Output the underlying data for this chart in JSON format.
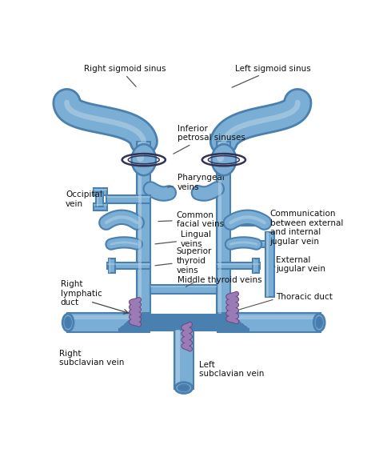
{
  "bg_color": "#ffffff",
  "vc": "#7baed4",
  "ve": "#4a80b0",
  "vl": "#b8d4e8",
  "vd": "#5588bb",
  "lc": "#9b7bb5",
  "tc": "#111111",
  "labels": {
    "right_sigmoid": "Right sigmoid sinus",
    "left_sigmoid": "Left sigmoid sinus",
    "inferior_petrosal": "Inferior\npetrosaI sinuses",
    "pharyngeal": "Pharyngeal\nveins",
    "occipital": "Occipital\nvein",
    "common_facial": "Common\nfacial veins",
    "lingual": "Lingual\nveins",
    "superior_thyroid": "Superior\nthyroid\nveins",
    "middle_thyroid": "Middle thyroid veins",
    "right_lymphatic": "Right\nlymphatic\nduct",
    "thoracic_duct": "Thoracic duct",
    "right_subclavian": "Right\nsubclavian vein",
    "left_subclavian": "Left\nsubclavian vein",
    "communication": "Communication\nbetween external\nand internal\njugular vein",
    "external_jugular": "External\njugular vein"
  }
}
